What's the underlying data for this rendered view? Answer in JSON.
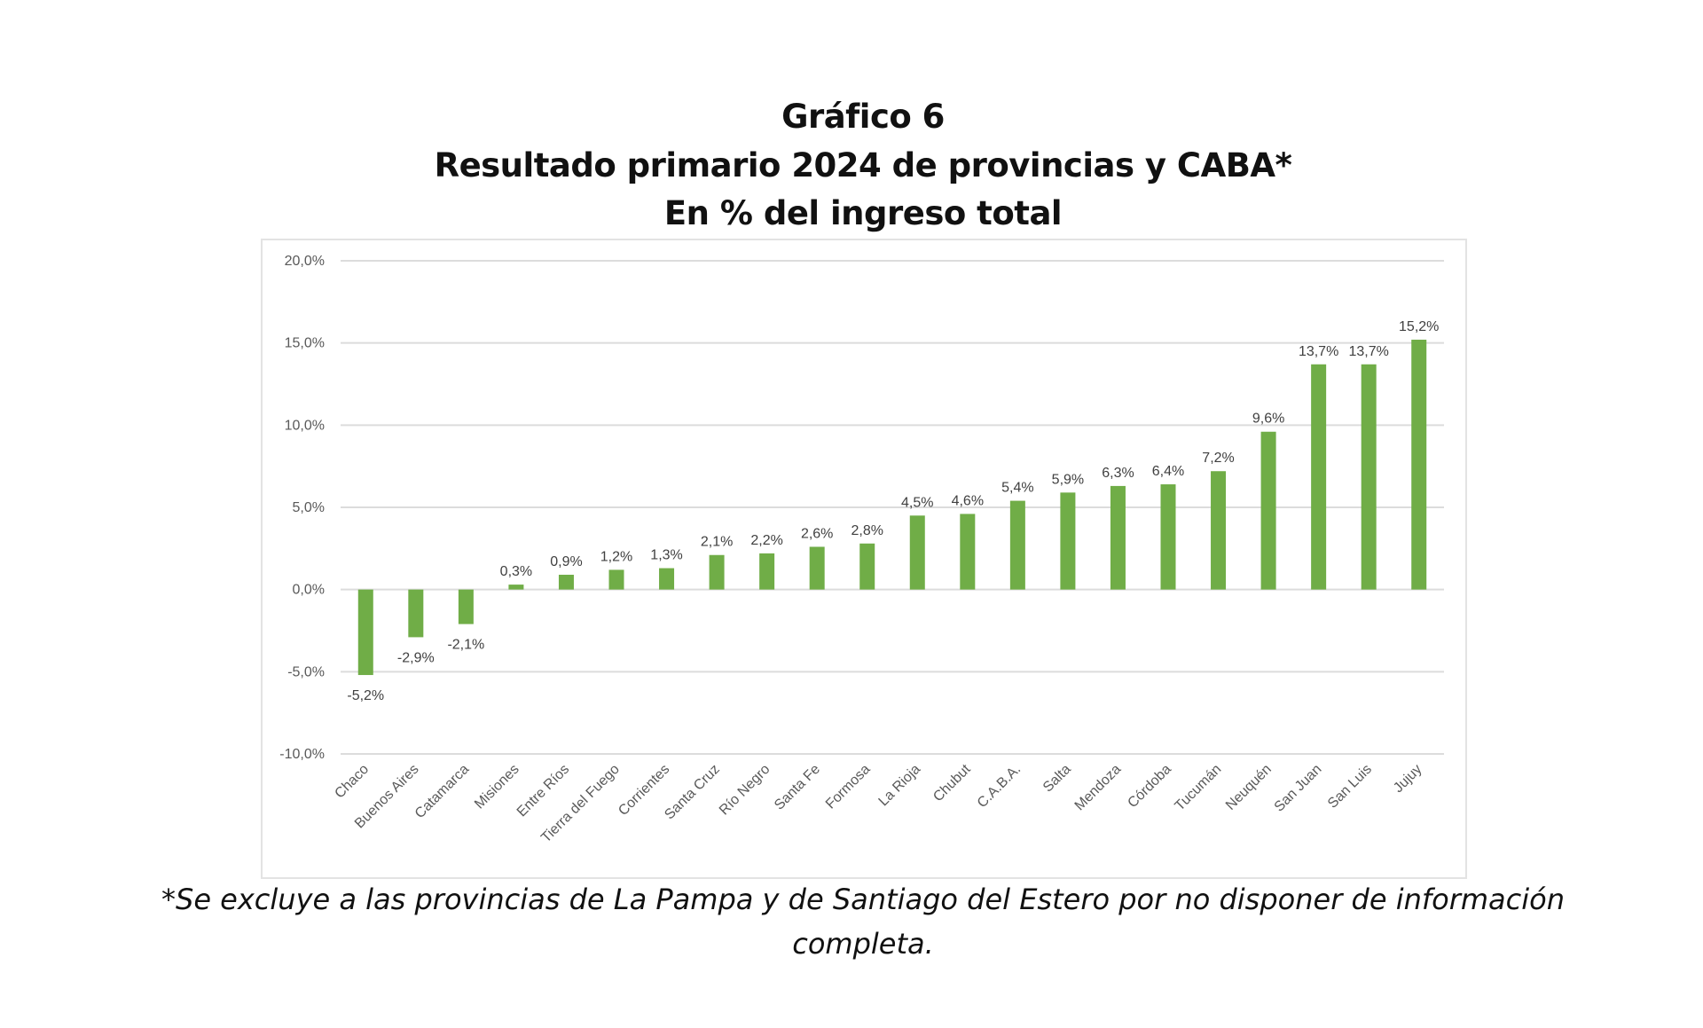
{
  "chart_data": {
    "type": "bar",
    "title": "Gráfico 6",
    "subtitle": "Resultado primario 2024 de provincias y CABA*",
    "subtitle2": "En % del ingreso total",
    "xlabel": "",
    "ylabel": "",
    "ylim": [
      -10,
      20
    ],
    "yticks": [
      20,
      15,
      10,
      5,
      0,
      -5,
      -10
    ],
    "ytick_labels": [
      "20,0%",
      "15,0%",
      "10,0%",
      "5,0%",
      "0,0%",
      "-5,0%",
      "-10,0%"
    ],
    "grid": true,
    "categories": [
      "Chaco",
      "Buenos Aires",
      "Catamarca",
      "Misiones",
      "Entre Ríos",
      "Tierra del Fuego",
      "Corrientes",
      "Santa Cruz",
      "Río Negro",
      "Santa Fe",
      "Formosa",
      "La Rioja",
      "Chubut",
      "C.A.B.A.",
      "Salta",
      "Mendoza",
      "Córdoba",
      "Tucumán",
      "Neuquén",
      "San Juan",
      "San Luis",
      "Jujuy"
    ],
    "values": [
      -5.2,
      -2.9,
      -2.1,
      0.3,
      0.9,
      1.2,
      1.3,
      2.1,
      2.2,
      2.6,
      2.8,
      4.5,
      4.6,
      5.4,
      5.9,
      6.3,
      6.4,
      7.2,
      9.6,
      13.7,
      13.7,
      15.2
    ],
    "data_labels": [
      "-5,2%",
      "-2,9%",
      "-2,1%",
      "0,3%",
      "0,9%",
      "1,2%",
      "1,3%",
      "2,1%",
      "2,2%",
      "2,6%",
      "2,8%",
      "4,5%",
      "4,6%",
      "5,4%",
      "5,9%",
      "6,3%",
      "6,4%",
      "7,2%",
      "9,6%",
      "13,7%",
      "13,7%",
      "15,2%"
    ],
    "bar_color": "#70ad47",
    "footnote": "*Se excluye a las provincias de La Pampa y de Santiago del Estero por no disponer de información",
    "footnote2": "completa."
  }
}
